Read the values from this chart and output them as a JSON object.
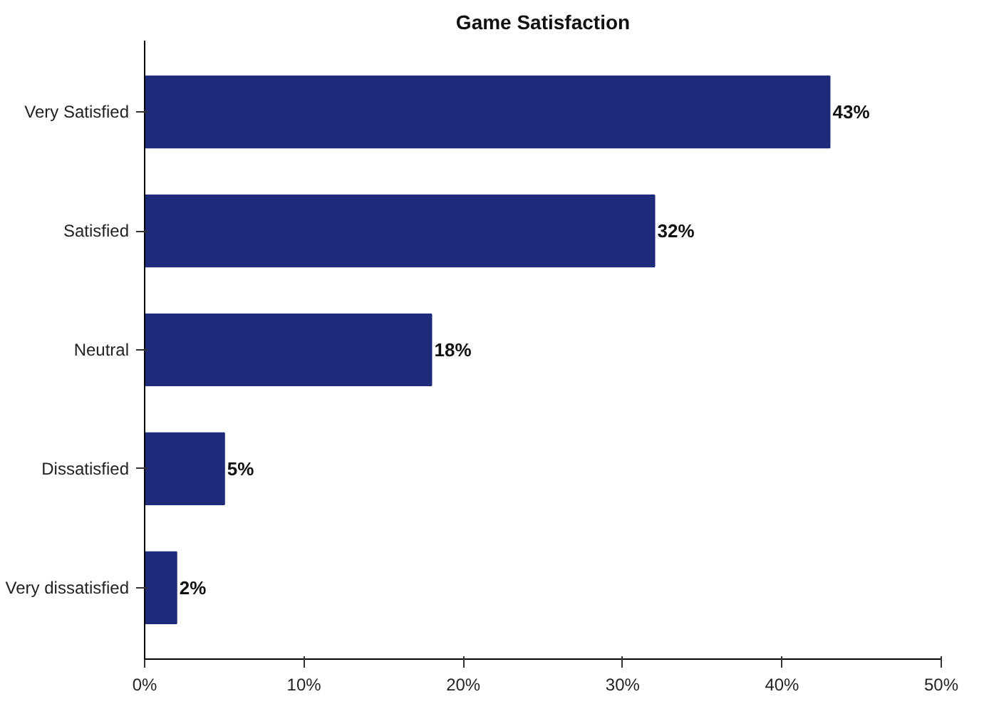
{
  "chart_data": {
    "type": "bar",
    "orientation": "horizontal",
    "title": "Game Satisfaction",
    "categories": [
      "Very Satisfied",
      "Satisfied",
      "Neutral",
      "Dissatisfied",
      "Very dissatisfied"
    ],
    "values": [
      43,
      32,
      18,
      5,
      2
    ],
    "value_labels": [
      "43%",
      "32%",
      "18%",
      "5%",
      "2%"
    ],
    "color": "#1f2a7a",
    "xlim": [
      0,
      50
    ],
    "xticks": [
      {
        "value": 0,
        "label": "0%"
      },
      {
        "value": 10,
        "label": "10%"
      },
      {
        "value": 20,
        "label": "20%"
      },
      {
        "value": 30,
        "label": "30%"
      },
      {
        "value": 40,
        "label": "40%"
      },
      {
        "value": 50,
        "label": "50%"
      }
    ],
    "grid": false
  }
}
